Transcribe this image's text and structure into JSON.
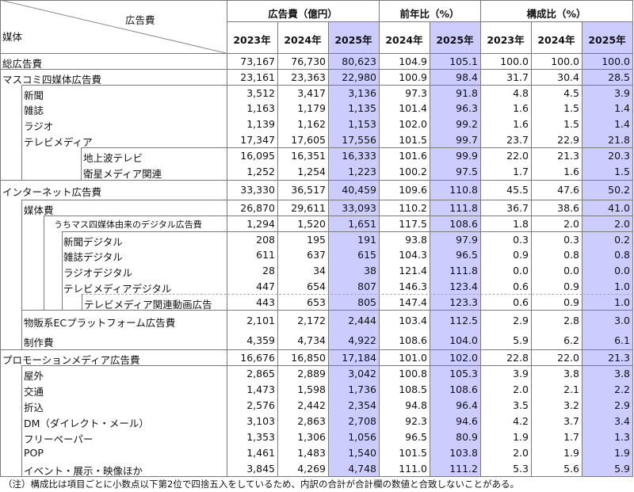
{
  "header": {
    "corner_top": "広告費",
    "corner_bottom": "媒体",
    "groups": [
      "広告費（億円）",
      "前年比（%）",
      "構成比（%）"
    ],
    "years": [
      "2023年",
      "2024年",
      "2025年",
      "2024年",
      "2025年",
      "2023年",
      "2024年",
      "2025年"
    ]
  },
  "highlight_color": "#ccccff",
  "rows": [
    {
      "label": "総広告費",
      "values": [
        "73,167",
        "76,730",
        "80,623",
        "104.9",
        "105.1",
        "100.0",
        "100.0",
        "100.0"
      ]
    },
    {
      "label": "マスコミ四媒体広告費",
      "values": [
        "23,161",
        "23,363",
        "22,980",
        "100.9",
        "98.4",
        "31.7",
        "30.4",
        "28.5"
      ]
    },
    {
      "label": "新聞",
      "values": [
        "3,512",
        "3,417",
        "3,136",
        "97.3",
        "91.8",
        "4.8",
        "4.5",
        "3.9"
      ]
    },
    {
      "label": "雑誌",
      "values": [
        "1,163",
        "1,179",
        "1,135",
        "101.4",
        "96.3",
        "1.6",
        "1.5",
        "1.4"
      ]
    },
    {
      "label": "ラジオ",
      "values": [
        "1,139",
        "1,162",
        "1,153",
        "102.0",
        "99.2",
        "1.6",
        "1.5",
        "1.4"
      ]
    },
    {
      "label": "テレビメディア",
      "values": [
        "17,347",
        "17,605",
        "17,556",
        "101.5",
        "99.7",
        "23.7",
        "22.9",
        "21.8"
      ]
    },
    {
      "label": "地上波テレビ",
      "values": [
        "16,095",
        "16,351",
        "16,333",
        "101.6",
        "99.9",
        "22.0",
        "21.3",
        "20.3"
      ]
    },
    {
      "label": "衛星メディア関連",
      "values": [
        "1,252",
        "1,254",
        "1,223",
        "100.2",
        "97.5",
        "1.7",
        "1.6",
        "1.5"
      ]
    },
    {
      "label": "インターネット広告費",
      "values": [
        "33,330",
        "36,517",
        "40,459",
        "109.6",
        "110.8",
        "45.5",
        "47.6",
        "50.2"
      ]
    },
    {
      "label": "媒体費",
      "values": [
        "26,870",
        "29,611",
        "33,093",
        "110.2",
        "111.8",
        "36.7",
        "38.6",
        "41.0"
      ]
    },
    {
      "label": "うちマス四媒体由来のデジタル広告費",
      "values": [
        "1,294",
        "1,520",
        "1,651",
        "117.5",
        "108.6",
        "1.8",
        "2.0",
        "2.0"
      ]
    },
    {
      "label": "新聞デジタル",
      "values": [
        "208",
        "195",
        "191",
        "93.8",
        "97.9",
        "0.3",
        "0.3",
        "0.2"
      ]
    },
    {
      "label": "雑誌デジタル",
      "values": [
        "611",
        "637",
        "615",
        "104.3",
        "96.5",
        "0.9",
        "0.8",
        "0.8"
      ]
    },
    {
      "label": "ラジオデジタル",
      "values": [
        "28",
        "34",
        "38",
        "121.4",
        "111.8",
        "0.0",
        "0.0",
        "0.0"
      ]
    },
    {
      "label": "テレビメディアデジタル",
      "values": [
        "447",
        "654",
        "807",
        "146.3",
        "123.4",
        "0.6",
        "0.9",
        "1.0"
      ]
    },
    {
      "label": "テレビメディア関連動画広告",
      "values": [
        "443",
        "653",
        "805",
        "147.4",
        "123.3",
        "0.6",
        "0.9",
        "1.0"
      ]
    },
    {
      "label": "物販系ECプラットフォーム広告費",
      "values": [
        "2,101",
        "2,172",
        "2,444",
        "103.4",
        "112.5",
        "2.9",
        "2.8",
        "3.0"
      ]
    },
    {
      "label": "制作費",
      "values": [
        "4,359",
        "4,734",
        "4,922",
        "108.6",
        "104.0",
        "5.9",
        "6.2",
        "6.1"
      ]
    },
    {
      "label": "プロモーションメディア広告費",
      "values": [
        "16,676",
        "16,850",
        "17,184",
        "101.0",
        "102.0",
        "22.8",
        "22.0",
        "21.3"
      ]
    },
    {
      "label": "屋外",
      "values": [
        "2,865",
        "2,889",
        "3,042",
        "100.8",
        "105.3",
        "3.9",
        "3.8",
        "3.8"
      ]
    },
    {
      "label": "交通",
      "values": [
        "1,473",
        "1,598",
        "1,736",
        "108.5",
        "108.6",
        "2.0",
        "2.1",
        "2.2"
      ]
    },
    {
      "label": "折込",
      "values": [
        "2,576",
        "2,442",
        "2,354",
        "94.8",
        "96.4",
        "3.5",
        "3.2",
        "2.9"
      ]
    },
    {
      "label": "DM（ダイレクト・メール）",
      "values": [
        "3,103",
        "2,863",
        "2,708",
        "92.3",
        "94.6",
        "4.2",
        "3.7",
        "3.4"
      ]
    },
    {
      "label": "フリーペーパー",
      "values": [
        "1,353",
        "1,306",
        "1,056",
        "96.5",
        "80.9",
        "1.9",
        "1.7",
        "1.3"
      ]
    },
    {
      "label": "POP",
      "values": [
        "1,461",
        "1,483",
        "1,540",
        "101.5",
        "103.8",
        "2.0",
        "1.9",
        "1.9"
      ]
    },
    {
      "label": "イベント・展示・映像ほか",
      "values": [
        "3,845",
        "4,269",
        "4,748",
        "111.0",
        "111.2",
        "5.3",
        "5.6",
        "5.9"
      ]
    }
  ],
  "footnote": "（注）構成比は項目ごとに小数点以下第2位で四捨五入をしているため、内訳の合計が合計欄の数値と合致しないことがある。"
}
